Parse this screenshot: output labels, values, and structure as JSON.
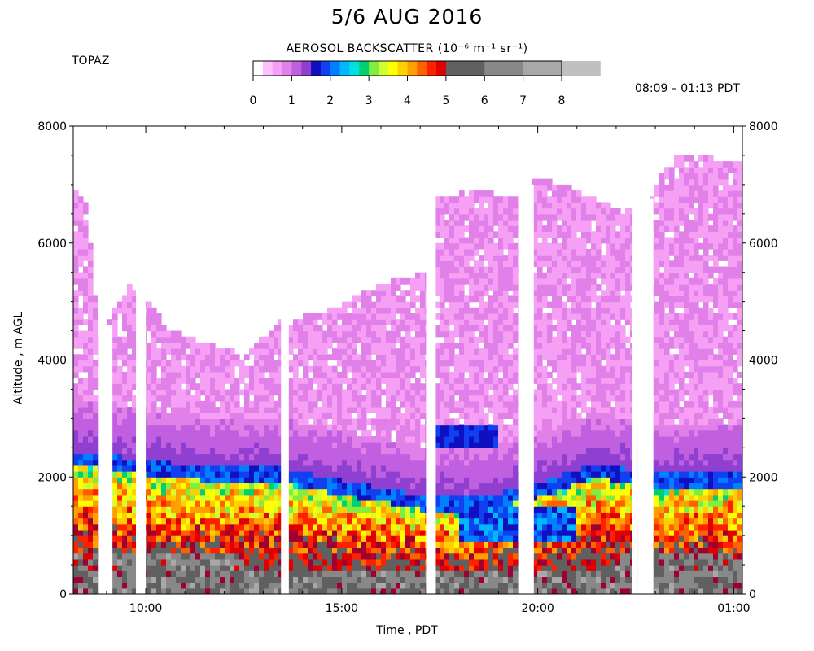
{
  "figure": {
    "title": "5/6 AUG 2016",
    "site": "TOPAZ",
    "colorbar_title": "AEROSOL BACKSCATTER (10⁻⁶ m⁻¹ sr⁻¹)",
    "time_range": "08:09 – 01:13 PDT",
    "xlabel": "Time , PDT",
    "ylabel": "Altitude , m AGL"
  },
  "colorbar": {
    "ticks": [
      "0",
      "1",
      "2",
      "3",
      "4",
      "5",
      "6",
      "7",
      "8"
    ],
    "range": [
      0,
      8
    ],
    "colors": [
      "#ffffff",
      "#ffc0ff",
      "#f5a0f5",
      "#e080e8",
      "#c060e0",
      "#9040d0",
      "#1010c0",
      "#1040f0",
      "#0080ff",
      "#00b8ff",
      "#00e0e0",
      "#00d070",
      "#80ee40",
      "#d0ff30",
      "#ffff00",
      "#ffd000",
      "#ffa000",
      "#ff6000",
      "#ff2000",
      "#e00000",
      "#a00030",
      "#606060",
      "#888888",
      "#a8a8a8",
      "#c0c0c0"
    ]
  },
  "chart_data": {
    "type": "heatmap",
    "title": "5/6 AUG 2016",
    "xlabel": "Time , PDT",
    "ylabel": "Altitude , m AGL",
    "x_range_hours": [
      8.15,
      25.22
    ],
    "ylim": [
      0,
      8000
    ],
    "x_tick_labels": [
      "10:00",
      "15:00",
      "20:00",
      "01:00"
    ],
    "x_tick_hours": [
      10,
      15,
      20,
      25
    ],
    "y_ticks": [
      0,
      2000,
      4000,
      6000,
      8000
    ],
    "y_tick_labels": [
      "0",
      "2000",
      "4000",
      "6000",
      "8000"
    ],
    "colorbar_units": "10⁻⁶ m⁻¹ sr⁻¹",
    "data_top_altitude_m": [
      [
        8.15,
        6950
      ],
      [
        8.5,
        6700
      ],
      [
        8.8,
        4400
      ],
      [
        9.6,
        5300
      ],
      [
        10.3,
        4800
      ],
      [
        10.7,
        4500
      ],
      [
        11.5,
        4300
      ],
      [
        12.5,
        4100
      ],
      [
        13.5,
        4700
      ],
      [
        14.5,
        4800
      ],
      [
        16.0,
        5300
      ],
      [
        17.2,
        5500
      ],
      [
        17.4,
        6800
      ],
      [
        18.5,
        6900
      ],
      [
        19.5,
        6800
      ],
      [
        20.0,
        7150
      ],
      [
        21.0,
        6900
      ],
      [
        22.0,
        6600
      ],
      [
        22.8,
        6550
      ],
      [
        23.3,
        7450
      ],
      [
        24.0,
        7500
      ],
      [
        25.0,
        7400
      ]
    ],
    "layers": [
      {
        "name": "",
        "description": "boundary layer top (sharp gradient)",
        "altitude_m": [
          [
            8.15,
            2300
          ],
          [
            10.0,
            2150
          ],
          [
            12.0,
            2000
          ],
          [
            13.5,
            2000
          ],
          [
            15.0,
            1800
          ],
          [
            17.0,
            1550
          ],
          [
            18.5,
            1500
          ],
          [
            20.0,
            1750
          ],
          [
            21.5,
            2100
          ],
          [
            23.0,
            1900
          ],
          [
            25.2,
            1950
          ]
        ]
      },
      {
        "name": "",
        "description": "elevated enhanced backscatter feature",
        "altitude_m": [
          [
            17.4,
            2800
          ],
          [
            18.5,
            2650
          ],
          [
            19.0,
            2500
          ]
        ]
      }
    ],
    "data_gaps_hours": [
      [
        8.8,
        9.15
      ],
      [
        9.75,
        10.0
      ],
      [
        13.45,
        13.65
      ],
      [
        17.15,
        17.4
      ],
      [
        19.5,
        19.9
      ],
      [
        22.4,
        22.55
      ],
      [
        22.55,
        22.95
      ]
    ]
  }
}
